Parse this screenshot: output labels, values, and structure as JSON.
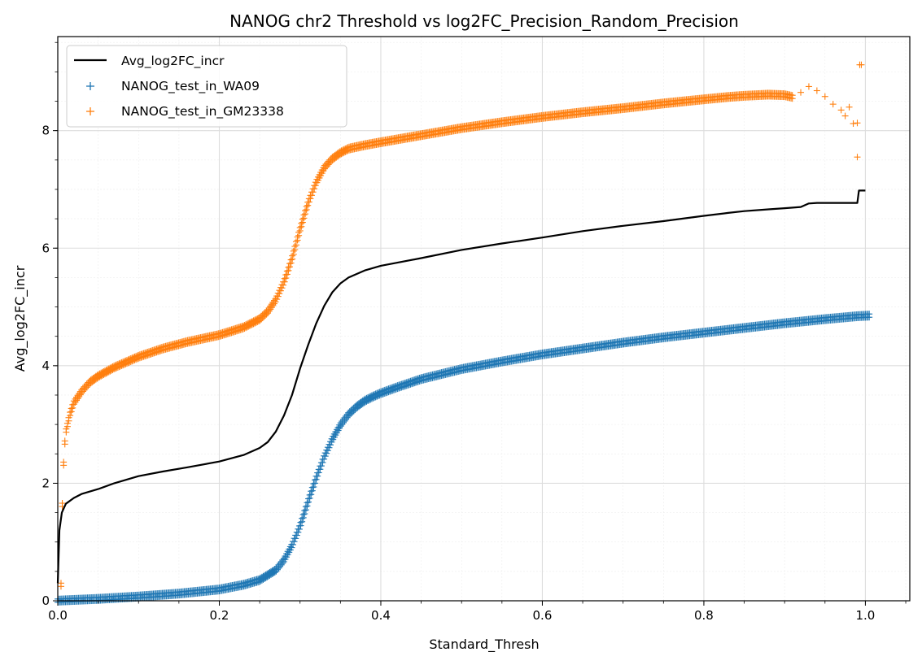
{
  "chart_data": {
    "type": "line",
    "title": "NANOG chr2 Threshold vs log2FC_Precision_Random_Precision",
    "xlabel": "Standard_Thresh",
    "ylabel": "Avg_log2FC_incr",
    "xlim": [
      0.0,
      1.055
    ],
    "ylim": [
      0.0,
      9.6
    ],
    "xticks": [
      "0.0",
      "0.2",
      "0.4",
      "0.6",
      "0.8",
      "1.0"
    ],
    "yticks": [
      "0",
      "2",
      "4",
      "6",
      "8"
    ],
    "grid": true,
    "minor_grid": true,
    "legend": {
      "placement": "top-left"
    },
    "colors": {
      "line": "#000000",
      "wa09": "#1f77b4",
      "gm23338": "#ff7f0e"
    },
    "series": [
      {
        "name": "Avg_log2FC_incr",
        "kind": "line",
        "x": [
          0.0,
          0.002,
          0.005,
          0.01,
          0.02,
          0.03,
          0.05,
          0.07,
          0.1,
          0.13,
          0.16,
          0.2,
          0.23,
          0.25,
          0.26,
          0.27,
          0.28,
          0.29,
          0.3,
          0.31,
          0.32,
          0.33,
          0.34,
          0.35,
          0.36,
          0.38,
          0.4,
          0.45,
          0.5,
          0.55,
          0.6,
          0.65,
          0.7,
          0.75,
          0.8,
          0.83,
          0.85,
          0.88,
          0.9,
          0.92,
          0.93,
          0.94,
          0.95,
          0.97,
          0.99,
          0.992,
          1.0
        ],
        "y": [
          0.3,
          1.2,
          1.5,
          1.65,
          1.75,
          1.82,
          1.9,
          2.0,
          2.12,
          2.2,
          2.27,
          2.37,
          2.48,
          2.6,
          2.7,
          2.88,
          3.15,
          3.5,
          3.95,
          4.35,
          4.72,
          5.02,
          5.25,
          5.4,
          5.5,
          5.62,
          5.7,
          5.83,
          5.97,
          6.08,
          6.18,
          6.29,
          6.38,
          6.46,
          6.55,
          6.6,
          6.63,
          6.66,
          6.68,
          6.7,
          6.76,
          6.77,
          6.77,
          6.77,
          6.77,
          6.98,
          6.98
        ]
      },
      {
        "name": "NANOG_test_in_WA09",
        "kind": "scatter",
        "marker": "+",
        "x": [
          0.0,
          0.05,
          0.1,
          0.15,
          0.2,
          0.23,
          0.25,
          0.27,
          0.28,
          0.29,
          0.3,
          0.31,
          0.32,
          0.33,
          0.34,
          0.35,
          0.36,
          0.37,
          0.38,
          0.39,
          0.4,
          0.42,
          0.45,
          0.5,
          0.55,
          0.6,
          0.65,
          0.7,
          0.75,
          0.8,
          0.85,
          0.9,
          0.95,
          0.99,
          1.005
        ],
        "y": [
          0.03,
          0.06,
          0.1,
          0.15,
          0.22,
          0.3,
          0.38,
          0.55,
          0.72,
          0.97,
          1.3,
          1.72,
          2.12,
          2.48,
          2.78,
          3.02,
          3.2,
          3.33,
          3.43,
          3.5,
          3.56,
          3.66,
          3.8,
          3.97,
          4.1,
          4.22,
          4.32,
          4.42,
          4.51,
          4.59,
          4.67,
          4.75,
          4.82,
          4.87,
          4.88
        ]
      },
      {
        "name": "NANOG_test_in_GM23338",
        "kind": "scatter",
        "marker": "+",
        "x": [
          0.004,
          0.006,
          0.008,
          0.01,
          0.015,
          0.02,
          0.03,
          0.04,
          0.05,
          0.07,
          0.1,
          0.13,
          0.16,
          0.2,
          0.23,
          0.25,
          0.26,
          0.27,
          0.28,
          0.29,
          0.3,
          0.31,
          0.32,
          0.33,
          0.34,
          0.35,
          0.36,
          0.38,
          0.4,
          0.45,
          0.5,
          0.55,
          0.6,
          0.65,
          0.7,
          0.75,
          0.8,
          0.83,
          0.85,
          0.88,
          0.9,
          0.91,
          0.92,
          0.93,
          0.94,
          0.95,
          0.96,
          0.97,
          0.975,
          0.98,
          0.985,
          0.99,
          0.99,
          0.993,
          0.995
        ],
        "y": [
          0.3,
          2.0,
          2.6,
          2.9,
          3.2,
          3.4,
          3.6,
          3.75,
          3.85,
          4.0,
          4.18,
          4.32,
          4.43,
          4.55,
          4.68,
          4.82,
          4.95,
          5.15,
          5.45,
          5.85,
          6.35,
          6.8,
          7.15,
          7.4,
          7.55,
          7.65,
          7.72,
          7.78,
          7.83,
          7.95,
          8.07,
          8.17,
          8.26,
          8.34,
          8.41,
          8.49,
          8.56,
          8.6,
          8.62,
          8.64,
          8.63,
          8.6,
          8.65,
          8.75,
          8.68,
          8.58,
          8.45,
          8.35,
          8.25,
          8.4,
          8.12,
          8.13,
          7.55,
          9.12,
          9.12
        ]
      }
    ]
  }
}
